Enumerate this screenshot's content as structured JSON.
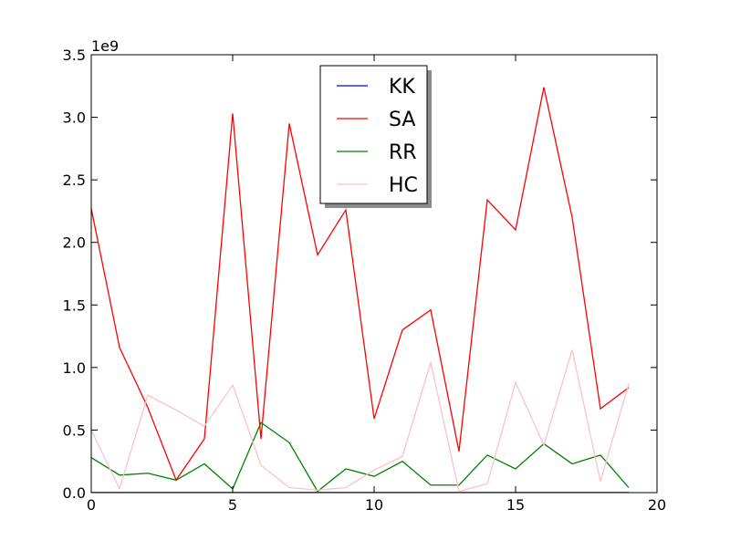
{
  "chart_data": {
    "type": "line",
    "title": "",
    "xlabel": "",
    "ylabel": "",
    "y_offset_label": "1e9",
    "xlim": [
      0,
      20
    ],
    "ylim": [
      0,
      3.5
    ],
    "xticks": [
      0,
      5,
      10,
      15,
      20
    ],
    "xtick_labels": [
      "0",
      "5",
      "10",
      "15",
      "20"
    ],
    "yticks": [
      0,
      0.5,
      1.0,
      1.5,
      2.0,
      2.5,
      3.0,
      3.5
    ],
    "ytick_labels": [
      "0.0",
      "0.5",
      "1.0",
      "1.5",
      "2.0",
      "2.5",
      "3.0",
      "3.5"
    ],
    "grid": false,
    "legend_position": "upper-center",
    "x": [
      0,
      1,
      2,
      3,
      4,
      5,
      6,
      7,
      8,
      9,
      10,
      11,
      12,
      13,
      14,
      15,
      16,
      17,
      18,
      19
    ],
    "series": [
      {
        "name": "KK",
        "color": "#0000ff",
        "values": [
          0.001,
          0.001,
          0.001,
          0.001,
          0.001,
          0.001,
          0.001,
          0.001,
          0.001,
          0.001,
          0.001,
          0.001,
          0.001,
          0.001,
          0.001,
          0.001,
          0.001,
          0.001,
          0.001,
          0.001
        ]
      },
      {
        "name": "SA",
        "color": "#ff0000",
        "values": [
          2.27,
          1.16,
          0.68,
          0.1,
          0.43,
          3.03,
          0.43,
          2.95,
          1.9,
          2.26,
          0.59,
          1.3,
          1.46,
          0.33,
          2.34,
          2.1,
          3.24,
          2.2,
          0.67,
          0.84
        ]
      },
      {
        "name": "RR",
        "color": "#008000",
        "values": [
          0.28,
          0.14,
          0.155,
          0.1,
          0.23,
          0.03,
          0.56,
          0.4,
          0.01,
          0.19,
          0.13,
          0.25,
          0.06,
          0.06,
          0.3,
          0.19,
          0.39,
          0.23,
          0.3,
          0.04
        ]
      },
      {
        "name": "HC",
        "color": "#ffc0cb",
        "values": [
          0.5,
          0.03,
          0.78,
          0.66,
          0.53,
          0.86,
          0.22,
          0.04,
          0.02,
          0.04,
          0.18,
          0.29,
          1.04,
          0.01,
          0.07,
          0.88,
          0.38,
          1.14,
          0.09,
          0.87
        ]
      }
    ]
  }
}
